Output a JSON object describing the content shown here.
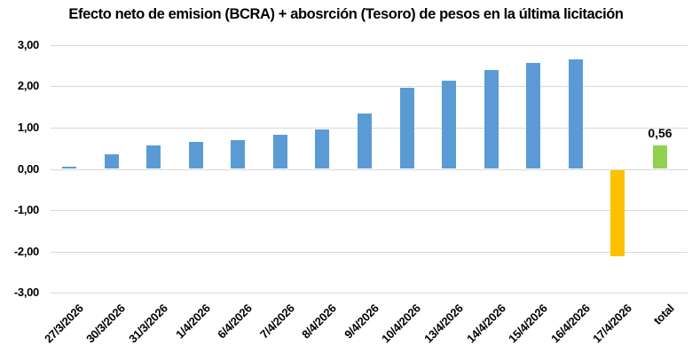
{
  "colors": {
    "background": "#FFFFFF",
    "text": "#000000",
    "gridline": "#D9D9D9",
    "bar_daily": "#5B9BD5",
    "bar_absorption": "#FFC000",
    "bar_total": "#92D050"
  },
  "chart_data": {
    "type": "bar",
    "title": "Efecto neto de emision (BCRA) + abosrción (Tesoro) de pesos en la última licitación",
    "xlabel": "",
    "ylabel": "",
    "ylim": [
      -3,
      3
    ],
    "grid": "horizontal",
    "legend": "none",
    "decimal_separator": ",",
    "categories": [
      "27/3/2026",
      "30/3/2026",
      "31/3/2026",
      "1/4/2026",
      "6/4/2026",
      "7/4/2026",
      "8/4/2026",
      "9/4/2026",
      "10/4/2026",
      "13/4/2026",
      "14/4/2026",
      "15/4/2026",
      "16/4/2026",
      "17/4/2026",
      "total"
    ],
    "values": [
      0.06,
      0.36,
      0.56,
      0.66,
      0.7,
      0.82,
      0.96,
      1.35,
      1.97,
      2.13,
      2.4,
      2.56,
      2.65,
      -2.09,
      0.56
    ],
    "bar_colors": [
      "#5B9BD5",
      "#5B9BD5",
      "#5B9BD5",
      "#5B9BD5",
      "#5B9BD5",
      "#5B9BD5",
      "#5B9BD5",
      "#5B9BD5",
      "#5B9BD5",
      "#5B9BD5",
      "#5B9BD5",
      "#5B9BD5",
      "#5B9BD5",
      "#FFC000",
      "#92D050"
    ],
    "y_ticks": [
      {
        "label": "3,00",
        "value": 3
      },
      {
        "label": "2,00",
        "value": 2
      },
      {
        "label": "1,00",
        "value": 1
      },
      {
        "label": "0,00",
        "value": 0
      },
      {
        "label": "-1,00",
        "value": -1
      },
      {
        "label": "-2,00",
        "value": -2
      },
      {
        "label": "-3,00",
        "value": -3
      }
    ],
    "annotations": [
      {
        "index": 14,
        "text": "0,56"
      }
    ]
  }
}
